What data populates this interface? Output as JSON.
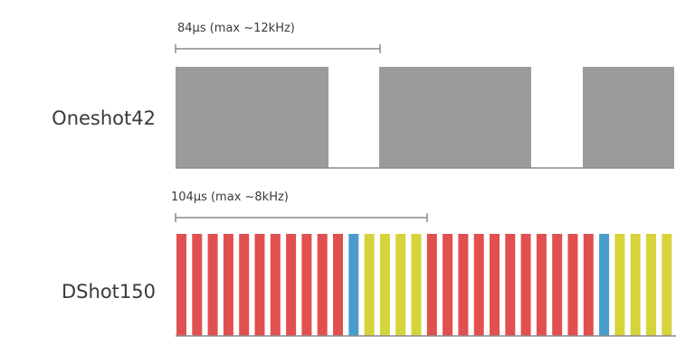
{
  "colors": {
    "pulse": "#9b9b9b",
    "bit_zero": "#e05050",
    "bit_telemetry": "#4a9ccf",
    "bit_crc": "#d6d43a",
    "line": "#8a8a8a",
    "text": "#3a3a3a"
  },
  "oneshot": {
    "label": "Oneshot42",
    "measure": "84µs (max ~12kHz)"
  },
  "dshot": {
    "label": "DShot150",
    "measure": "104µs (max ~8kHz)",
    "frames": [
      [
        "0",
        "0",
        "0",
        "0",
        "0",
        "0",
        "0",
        "0",
        "0",
        "0",
        "0",
        "T",
        "C",
        "C",
        "C",
        "C"
      ],
      [
        "0",
        "0",
        "0",
        "0",
        "0",
        "0",
        "0",
        "0",
        "0",
        "0",
        "0",
        "T",
        "C",
        "C",
        "C",
        "C"
      ]
    ]
  }
}
